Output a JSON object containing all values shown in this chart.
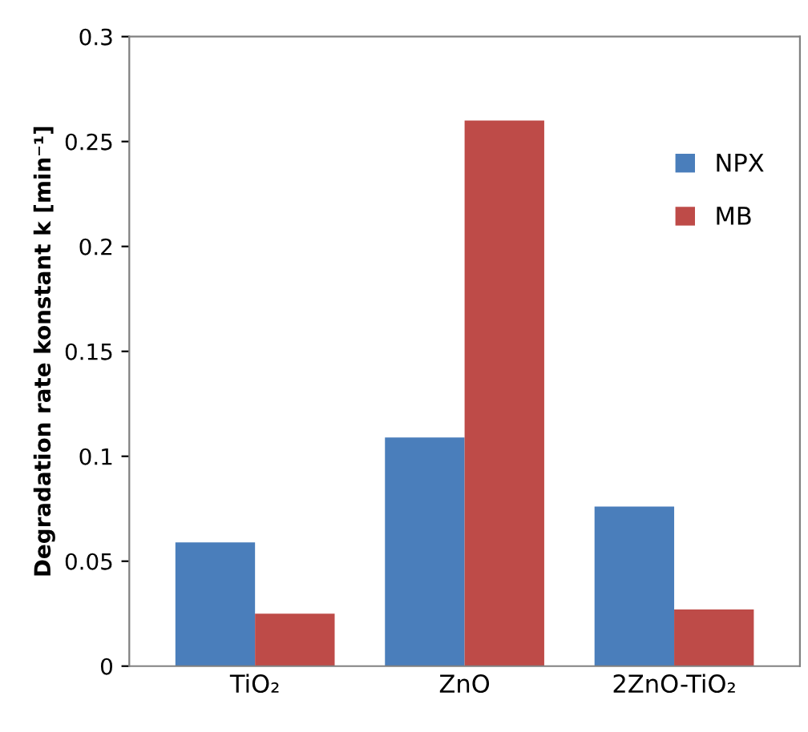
{
  "chart_data": {
    "type": "bar",
    "ylabel": "Degradation rate konstant k [min⁻¹]",
    "categories": [
      "TiO₂",
      "ZnO",
      "2ZnO-TiO₂"
    ],
    "series": [
      {
        "name": "NPX",
        "color": "#4a7ebb",
        "values": [
          0.059,
          0.109,
          0.076
        ]
      },
      {
        "name": "MB",
        "color": "#be4b48",
        "values": [
          0.025,
          0.26,
          0.027
        ]
      }
    ],
    "ylim": [
      0,
      0.3
    ],
    "yticks": [
      0,
      0.05,
      0.1,
      0.15,
      0.2,
      0.25,
      0.3
    ],
    "grid": false,
    "legend": "top right"
  }
}
